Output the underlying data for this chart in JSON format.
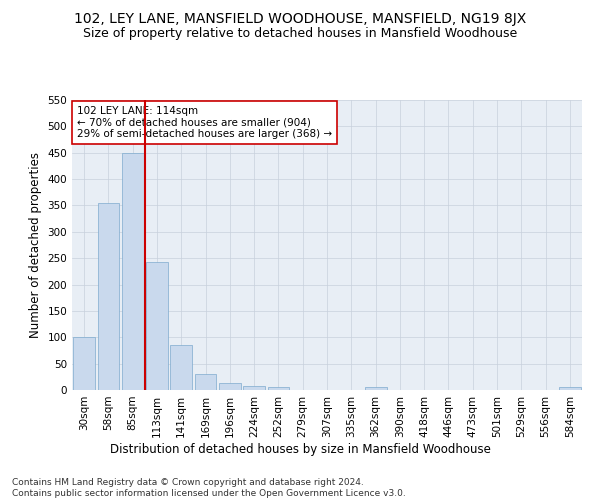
{
  "title_line1": "102, LEY LANE, MANSFIELD WOODHOUSE, MANSFIELD, NG19 8JX",
  "title_line2": "Size of property relative to detached houses in Mansfield Woodhouse",
  "xlabel": "Distribution of detached houses by size in Mansfield Woodhouse",
  "ylabel": "Number of detached properties",
  "footnote": "Contains HM Land Registry data © Crown copyright and database right 2024.\nContains public sector information licensed under the Open Government Licence v3.0.",
  "categories": [
    "30sqm",
    "58sqm",
    "85sqm",
    "113sqm",
    "141sqm",
    "169sqm",
    "196sqm",
    "224sqm",
    "252sqm",
    "279sqm",
    "307sqm",
    "335sqm",
    "362sqm",
    "390sqm",
    "418sqm",
    "446sqm",
    "473sqm",
    "501sqm",
    "529sqm",
    "556sqm",
    "584sqm"
  ],
  "values": [
    101,
    355,
    449,
    242,
    86,
    30,
    13,
    8,
    5,
    0,
    0,
    0,
    5,
    0,
    0,
    0,
    0,
    0,
    0,
    0,
    5
  ],
  "bar_color": "#c9d9ed",
  "bar_edge_color": "#7eaace",
  "vline_color": "#cc0000",
  "vline_x_index": 3,
  "annotation_text_line1": "102 LEY LANE: 114sqm",
  "annotation_text_line2": "← 70% of detached houses are smaller (904)",
  "annotation_text_line3": "29% of semi-detached houses are larger (368) →",
  "annotation_box_color": "#ffffff",
  "annotation_box_edge": "#cc0000",
  "ylim": [
    0,
    550
  ],
  "yticks": [
    0,
    50,
    100,
    150,
    200,
    250,
    300,
    350,
    400,
    450,
    500,
    550
  ],
  "bg_color": "#ffffff",
  "plot_bg_color": "#e8eef5",
  "grid_color": "#c8d0dc",
  "title1_fontsize": 10,
  "title2_fontsize": 9,
  "xlabel_fontsize": 8.5,
  "ylabel_fontsize": 8.5,
  "tick_fontsize": 7.5,
  "annot_fontsize": 7.5,
  "footnote_fontsize": 6.5
}
